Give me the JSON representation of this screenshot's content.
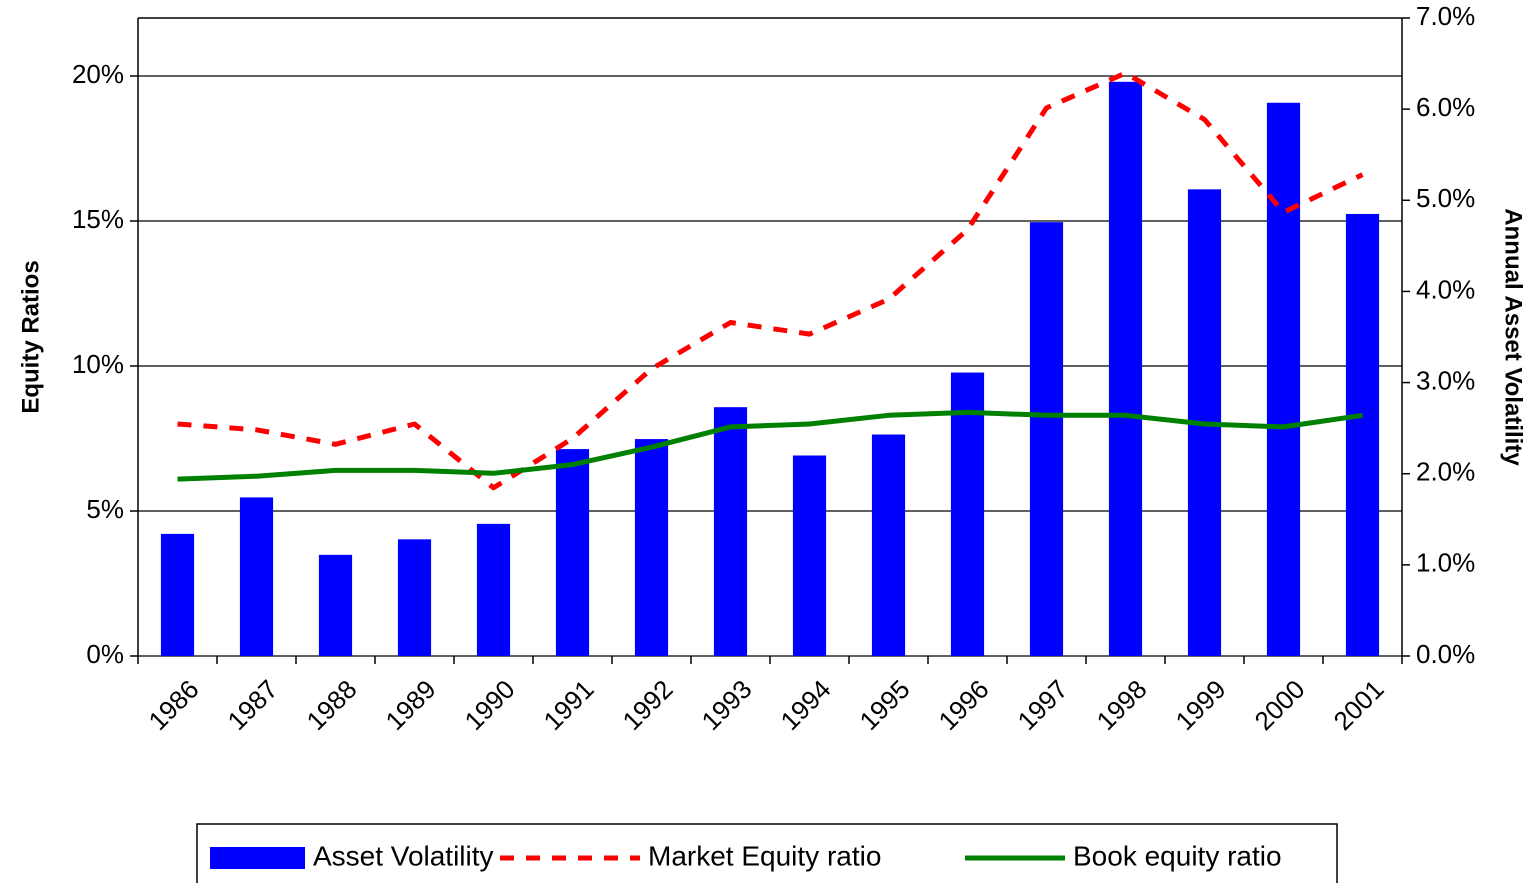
{
  "chart_data": {
    "type": "bar",
    "categories": [
      "1986",
      "1987",
      "1988",
      "1989",
      "1990",
      "1991",
      "1992",
      "1993",
      "1994",
      "1995",
      "1996",
      "1997",
      "1998",
      "1999",
      "2000",
      "2001"
    ],
    "y_label": "Equity Ratios",
    "y2_label": "Annual Asset Volatility",
    "ylim": [
      0,
      22
    ],
    "yticks": [
      {
        "value": 0,
        "label": "0%"
      },
      {
        "value": 5,
        "label": "5%"
      },
      {
        "value": 10,
        "label": "10%"
      },
      {
        "value": 15,
        "label": "15%"
      },
      {
        "value": 20,
        "label": "20%"
      }
    ],
    "y2lim": [
      0,
      7
    ],
    "y2ticks": [
      {
        "value": 0,
        "label": "0.0%"
      },
      {
        "value": 1,
        "label": "1.0%"
      },
      {
        "value": 2,
        "label": "2.0%"
      },
      {
        "value": 3,
        "label": "3.0%"
      },
      {
        "value": 4,
        "label": "4.0%"
      },
      {
        "value": 5,
        "label": "5.0%"
      },
      {
        "value": 6,
        "label": "6.0%"
      },
      {
        "value": 7,
        "label": "7.0%"
      }
    ],
    "grid": true,
    "legend": "bottom",
    "series": [
      {
        "name": "Asset Volatility",
        "type": "bar",
        "axis": "y2",
        "color": "#0000ff",
        "values": [
          1.34,
          1.74,
          1.11,
          1.28,
          1.45,
          2.27,
          2.38,
          2.73,
          2.2,
          2.43,
          3.11,
          4.76,
          6.3,
          5.12,
          6.07,
          4.85
        ]
      },
      {
        "name": "Market Equity ratio",
        "type": "line",
        "dashed": true,
        "color": "#ff0000",
        "values": [
          8.0,
          7.8,
          7.3,
          8.0,
          5.8,
          7.5,
          9.9,
          11.5,
          11.1,
          12.3,
          14.7,
          18.9,
          20.1,
          18.5,
          15.3,
          16.6
        ]
      },
      {
        "name": "Book equity ratio",
        "type": "line",
        "dashed": false,
        "color": "#008000",
        "values": [
          6.1,
          6.2,
          6.4,
          6.4,
          6.3,
          6.6,
          7.2,
          7.9,
          8.0,
          8.3,
          8.4,
          8.3,
          8.3,
          8.0,
          7.9,
          8.3
        ]
      }
    ]
  }
}
